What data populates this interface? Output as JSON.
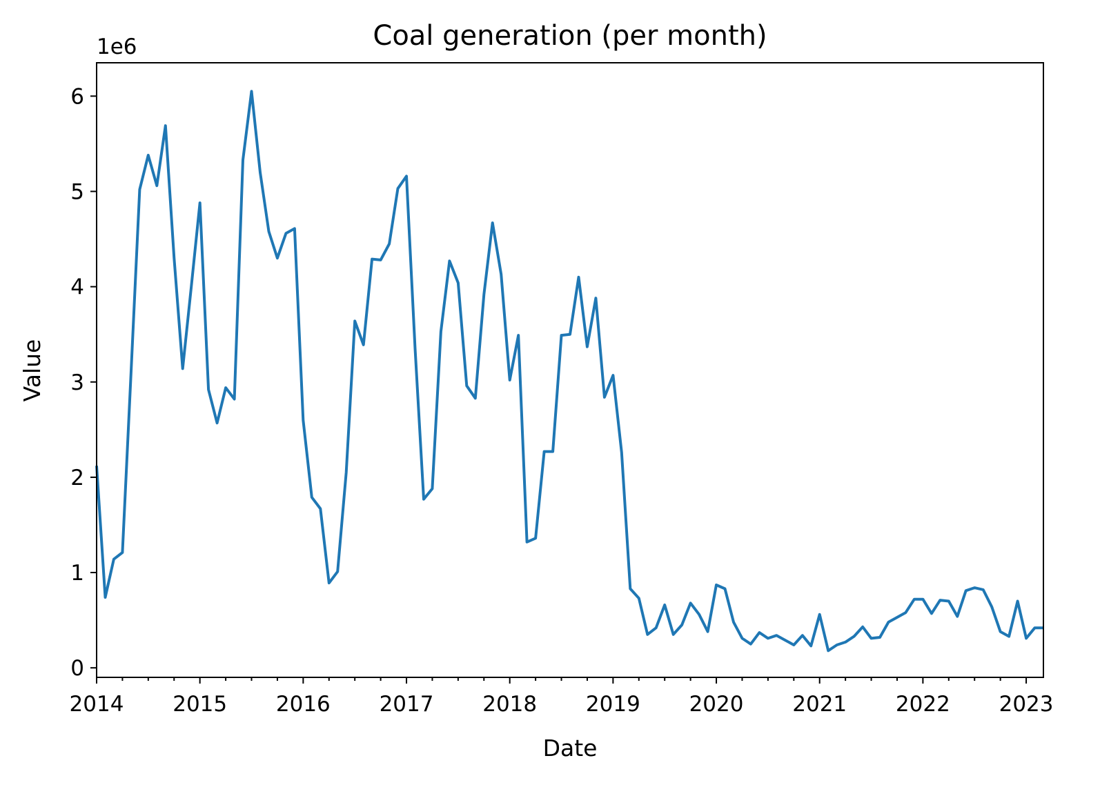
{
  "chart_data": {
    "type": "line",
    "title": "Coal generation (per month)",
    "xlabel": "Date",
    "ylabel": "Value",
    "y_offset_label": "1e6",
    "y_ticks": [
      0,
      1,
      2,
      3,
      4,
      5,
      6
    ],
    "y_tick_labels": [
      "0",
      "1",
      "2",
      "3",
      "4",
      "5",
      "6"
    ],
    "x_tick_labels": [
      "2014",
      "2015",
      "2016",
      "2017",
      "2018",
      "2019",
      "2020",
      "2021",
      "2022",
      "2023"
    ],
    "xlim": [
      "2014-01",
      "2023-03"
    ],
    "ylim": [
      -0.1,
      6.35
    ],
    "y_unit": "1e6",
    "grid": false,
    "legend": false,
    "color": "#1f77b4",
    "series": [
      {
        "x": [
          "2014-01",
          "2014-02",
          "2014-03",
          "2014-04",
          "2014-05",
          "2014-06",
          "2014-07",
          "2014-08",
          "2014-09",
          "2014-10",
          "2014-11",
          "2014-12",
          "2015-01",
          "2015-02",
          "2015-03",
          "2015-04",
          "2015-05",
          "2015-06",
          "2015-07",
          "2015-08",
          "2015-09",
          "2015-10",
          "2015-11",
          "2015-12",
          "2016-01",
          "2016-02",
          "2016-03",
          "2016-04",
          "2016-05",
          "2016-06",
          "2016-07",
          "2016-08",
          "2016-09",
          "2016-10",
          "2016-11",
          "2016-12",
          "2017-01",
          "2017-02",
          "2017-03",
          "2017-04",
          "2017-05",
          "2017-06",
          "2017-07",
          "2017-08",
          "2017-09",
          "2017-10",
          "2017-11",
          "2017-12",
          "2018-01",
          "2018-02",
          "2018-03",
          "2018-04",
          "2018-05",
          "2018-06",
          "2018-07",
          "2018-08",
          "2018-09",
          "2018-10",
          "2018-11",
          "2018-12",
          "2019-01",
          "2019-02",
          "2019-03",
          "2019-04",
          "2019-05",
          "2019-06",
          "2019-07",
          "2019-08",
          "2019-09",
          "2019-10",
          "2019-11",
          "2019-12",
          "2020-01",
          "2020-02",
          "2020-03",
          "2020-04",
          "2020-05",
          "2020-06",
          "2020-07",
          "2020-08",
          "2020-09",
          "2020-10",
          "2020-11",
          "2020-12",
          "2021-01",
          "2021-02",
          "2021-03",
          "2021-04",
          "2021-05",
          "2021-06",
          "2021-07",
          "2021-08",
          "2021-09",
          "2021-10",
          "2021-11",
          "2021-12",
          "2022-01",
          "2022-02",
          "2022-03",
          "2022-04",
          "2022-05",
          "2022-06",
          "2022-07",
          "2022-08",
          "2022-09",
          "2022-10",
          "2022-11",
          "2022-12",
          "2023-01",
          "2023-02",
          "2023-03"
        ],
        "values": [
          2.12,
          0.74,
          1.14,
          1.21,
          3.1,
          5.02,
          5.38,
          5.06,
          5.69,
          4.3,
          3.14,
          4.0,
          4.88,
          2.92,
          2.57,
          2.94,
          2.82,
          5.33,
          6.05,
          5.2,
          4.58,
          4.3,
          4.56,
          4.61,
          2.6,
          1.79,
          1.67,
          0.89,
          1.01,
          2.05,
          3.64,
          3.39,
          4.29,
          4.28,
          4.45,
          5.03,
          5.16,
          3.35,
          1.77,
          1.88,
          3.53,
          4.27,
          4.04,
          2.96,
          2.83,
          3.92,
          4.67,
          4.13,
          3.02,
          3.49,
          1.32,
          1.36,
          2.27,
          2.27,
          3.49,
          3.5,
          4.1,
          3.37,
          3.88,
          2.84,
          3.07,
          2.26,
          0.83,
          0.73,
          0.35,
          0.42,
          0.66,
          0.35,
          0.45,
          0.68,
          0.56,
          0.38,
          0.87,
          0.83,
          0.48,
          0.31,
          0.25,
          0.37,
          0.31,
          0.34,
          0.29,
          0.24,
          0.34,
          0.23,
          0.56,
          0.18,
          0.24,
          0.27,
          0.33,
          0.43,
          0.31,
          0.32,
          0.48,
          0.53,
          0.58,
          0.72,
          0.72,
          0.57,
          0.71,
          0.7,
          0.54,
          0.81,
          0.84,
          0.82,
          0.64,
          0.38,
          0.33,
          0.7,
          0.31,
          0.42,
          0.42
        ]
      }
    ]
  }
}
